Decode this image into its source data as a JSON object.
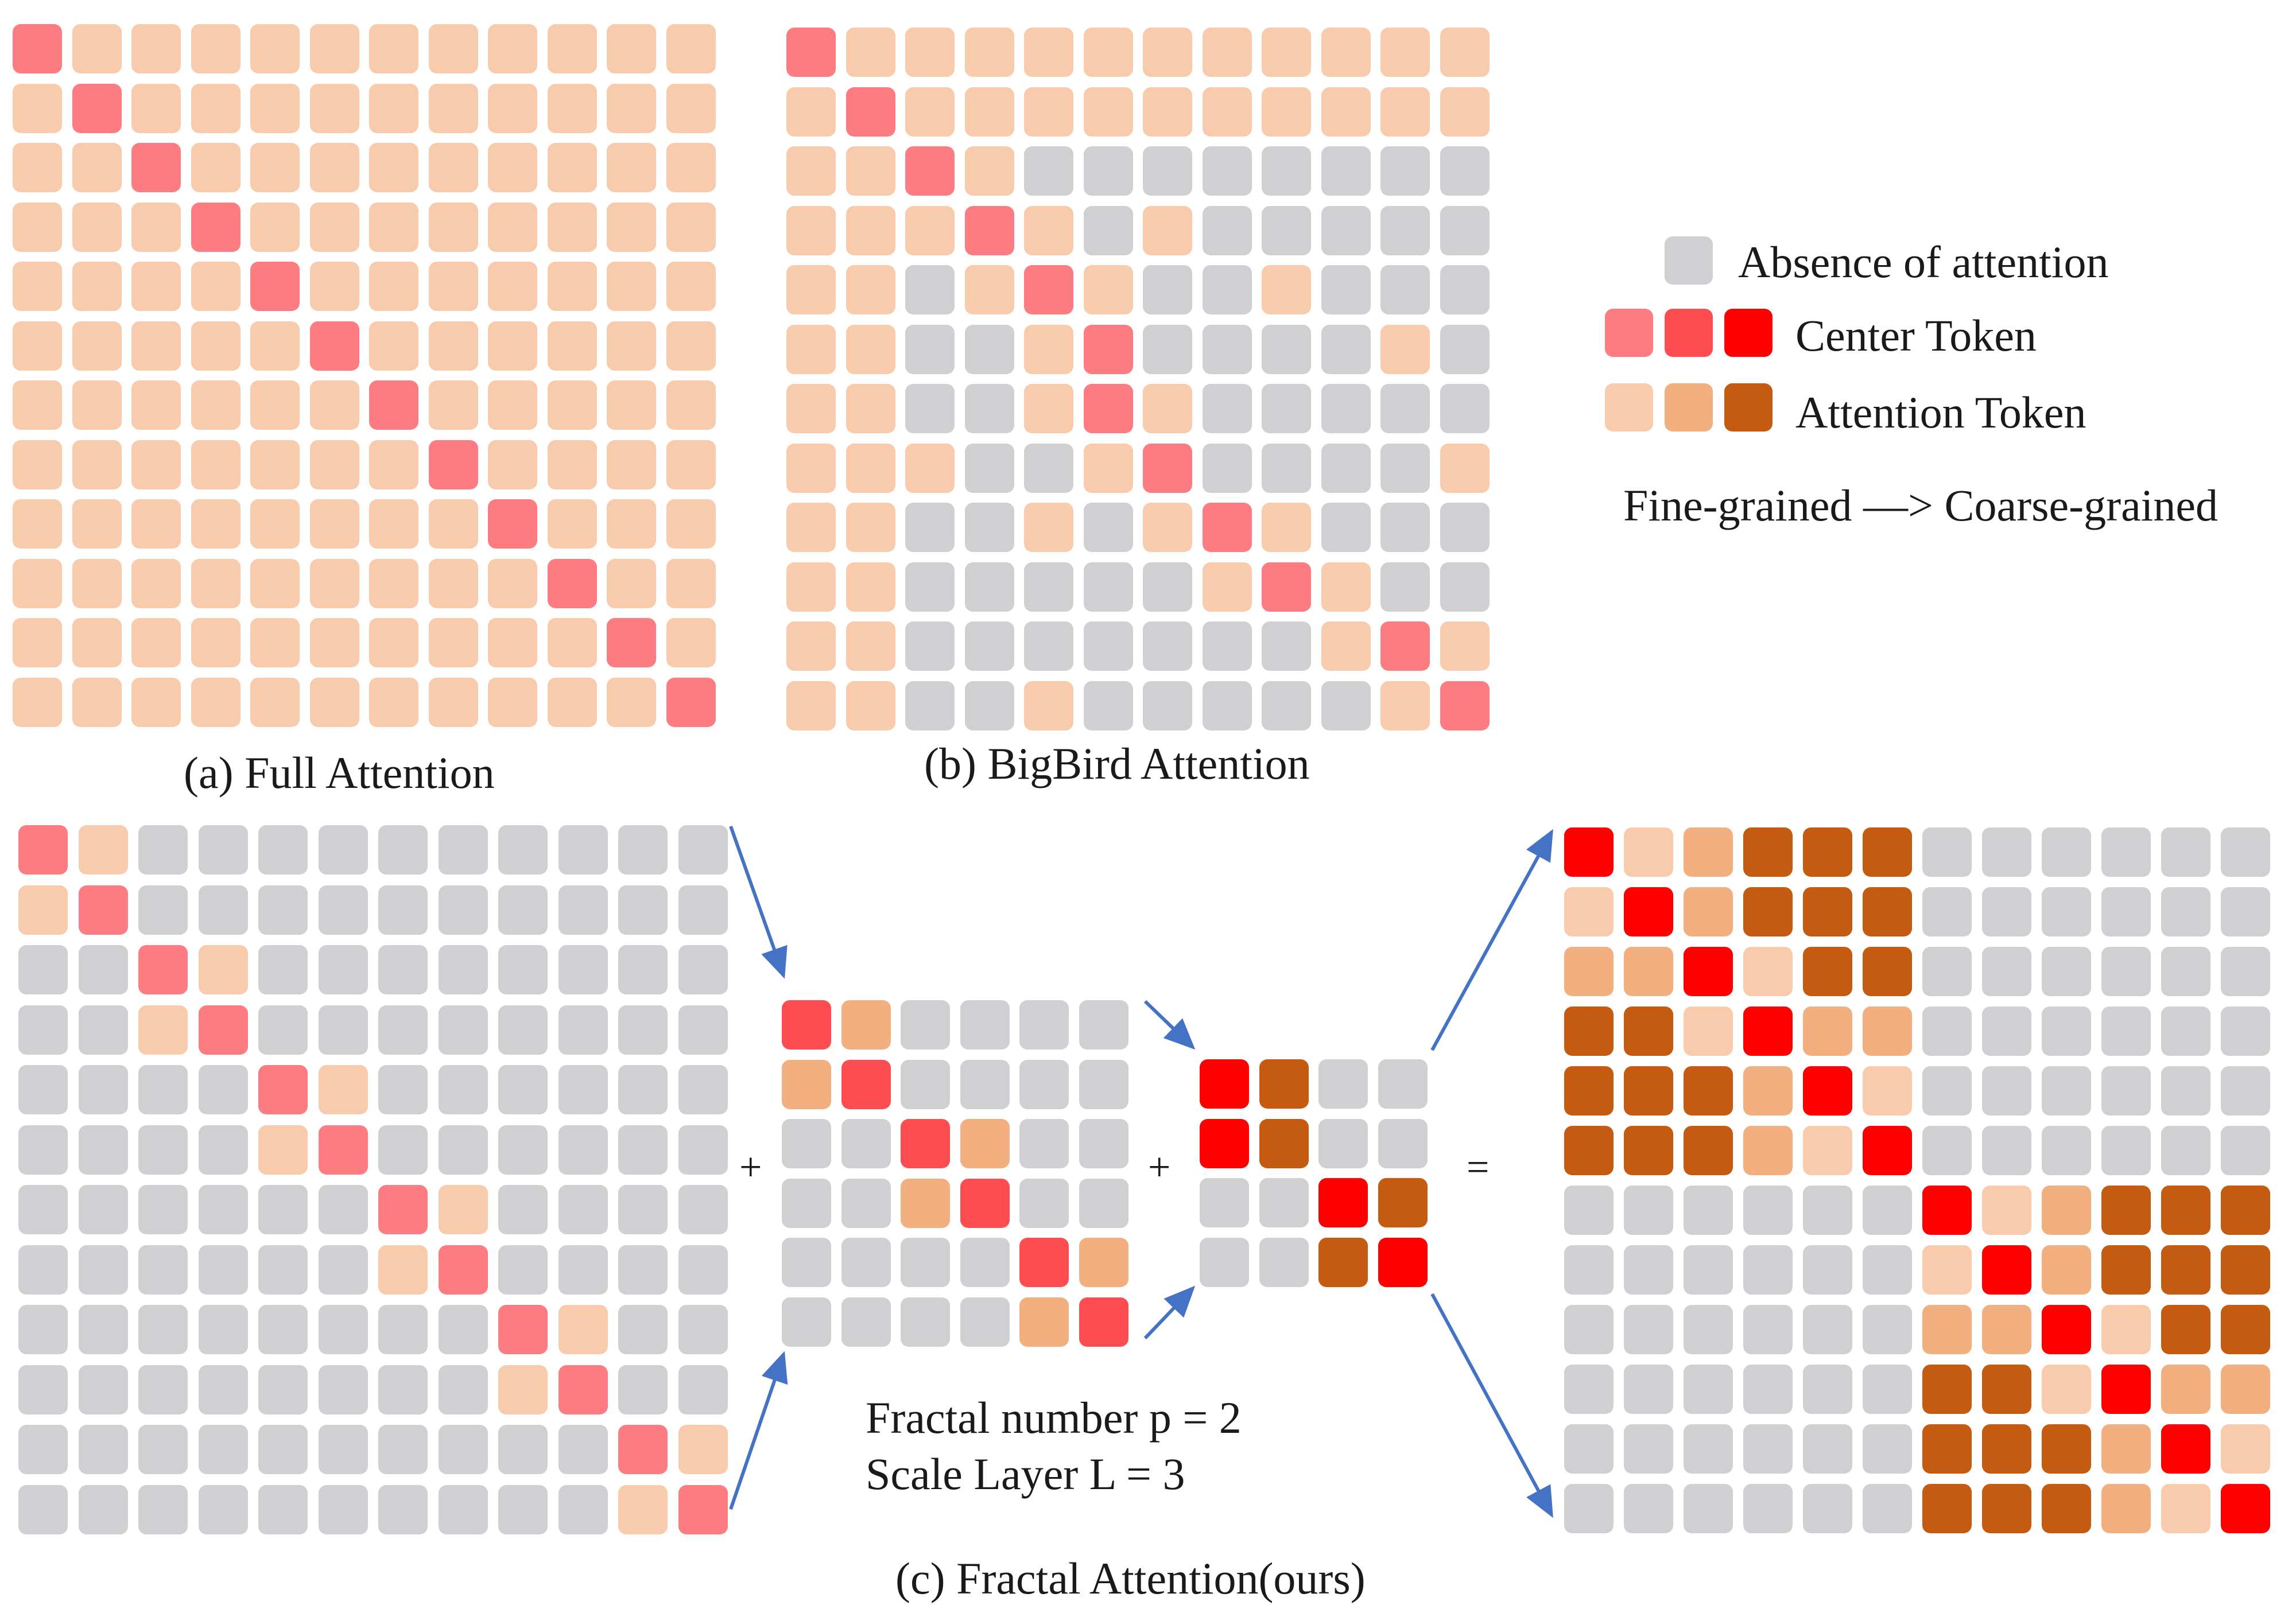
{
  "colors": {
    "gray": "#d0cfd2",
    "peach": "#f7cbab",
    "tan": "#f2b081",
    "brown": "#c55a11",
    "pink": "#fd7c82",
    "red1": "#fe4d51",
    "red2": "#fe0000",
    "arrow": "#4472c4"
  },
  "legend": {
    "absence": "Absence of attention",
    "center": "Center Token",
    "attention": "Attention Token",
    "scale": "Fine-grained —> Coarse-grained",
    "center_swatches": [
      "pink",
      "red1",
      "red2"
    ],
    "attention_swatches": [
      "peach",
      "tan",
      "brown"
    ]
  },
  "captions": {
    "full": "(a) Full Attention",
    "bigbird": "(b) BigBird Attention",
    "fractal": "(c) Fractal Attention(ours)",
    "fractal_number": "Fractal number p = 2",
    "scale_layer": "Scale Layer L = 3"
  },
  "operators": {
    "plus1": "+",
    "plus2": "+",
    "equals": "="
  },
  "grids": {
    "full": {
      "legend_map": {
        "C": "pink",
        "A": "peach",
        "G": "gray"
      },
      "rows": [
        "CAAAAAAAAAAA",
        "ACAAAAAAAAAA",
        "AACAAAAAAAAA",
        "AAACAAAAAAAA",
        "AAAACAAAAAAA",
        "AAAAACAAAAAA",
        "AAAAAACAAAAA",
        "AAAAAAACAAAA",
        "AAAAAAAACAAA",
        "AAAAAAAAACAA",
        "AAAAAAAAAACA",
        "AAAAAAAAAAAC"
      ]
    },
    "bigbird": {
      "legend_map": {
        "C": "pink",
        "A": "peach",
        "G": "gray"
      },
      "rows": [
        "CAAAAAAAAAAA",
        "ACAAAAAAAAAA",
        "AACAGGGGGGGG",
        "AAACAGAGGGGG",
        "AAGACAGGAGGG",
        "AAGGACGGGGAG",
        "AAGGACAGGGGG",
        "AAAGGACGGGGA",
        "AAGGAGACAGGG",
        "AAGGGGGACAGG",
        "AAGGGGGGGACA",
        "AAGGAGGGGGAC"
      ]
    },
    "layer1": {
      "legend_map": {
        "C": "pink",
        "A": "peach",
        "G": "gray"
      },
      "rows": [
        "CAGGGGGGGGGG",
        "ACGGGGGGGGGG",
        "GGCAGGGGGGGG",
        "GGACGGGGGGGG",
        "GGGGCAGGGGGG",
        "GGGGACGGGGGG",
        "GGGGGGCAGGGG",
        "GGGGGGACGGGG",
        "GGGGGGGGCAGG",
        "GGGGGGGGACGG",
        "GGGGGGGGGGCA",
        "GGGGGGGGGGAC"
      ]
    },
    "layer2": {
      "legend_map": {
        "C": "red1",
        "A": "tan",
        "G": "gray"
      },
      "rows": [
        "CAGGGG",
        "ACGGGG",
        "GGCAGG",
        "GGACGG",
        "GGGGCA",
        "GGGGAC"
      ]
    },
    "layer3": {
      "legend_map": {
        "C": "red2",
        "A": "brown",
        "G": "gray"
      },
      "rows": [
        "CAGG",
        "CAGG",
        "GGCA",
        "GGAC"
      ]
    },
    "result": {
      "legend_map": {
        "C": "red2",
        "P": "peach",
        "T": "tan",
        "B": "brown",
        "G": "gray"
      },
      "rows": [
        "CPTBBBGGGGGG",
        "PCTBBBGGGGGG",
        "TTCPBBGGGGGG",
        "BBPCTTGGGGGG",
        "BBBTCPGGGGGG",
        "BBBTPCGGGGGG",
        "GGGGGGCPTBBB",
        "GGGGGGPCTBBB",
        "GGGGGGTTCPBB",
        "GGGGGGBBPCTT",
        "GGGGGGBBBTCP",
        "GGGGGGBBBTPC"
      ]
    }
  }
}
